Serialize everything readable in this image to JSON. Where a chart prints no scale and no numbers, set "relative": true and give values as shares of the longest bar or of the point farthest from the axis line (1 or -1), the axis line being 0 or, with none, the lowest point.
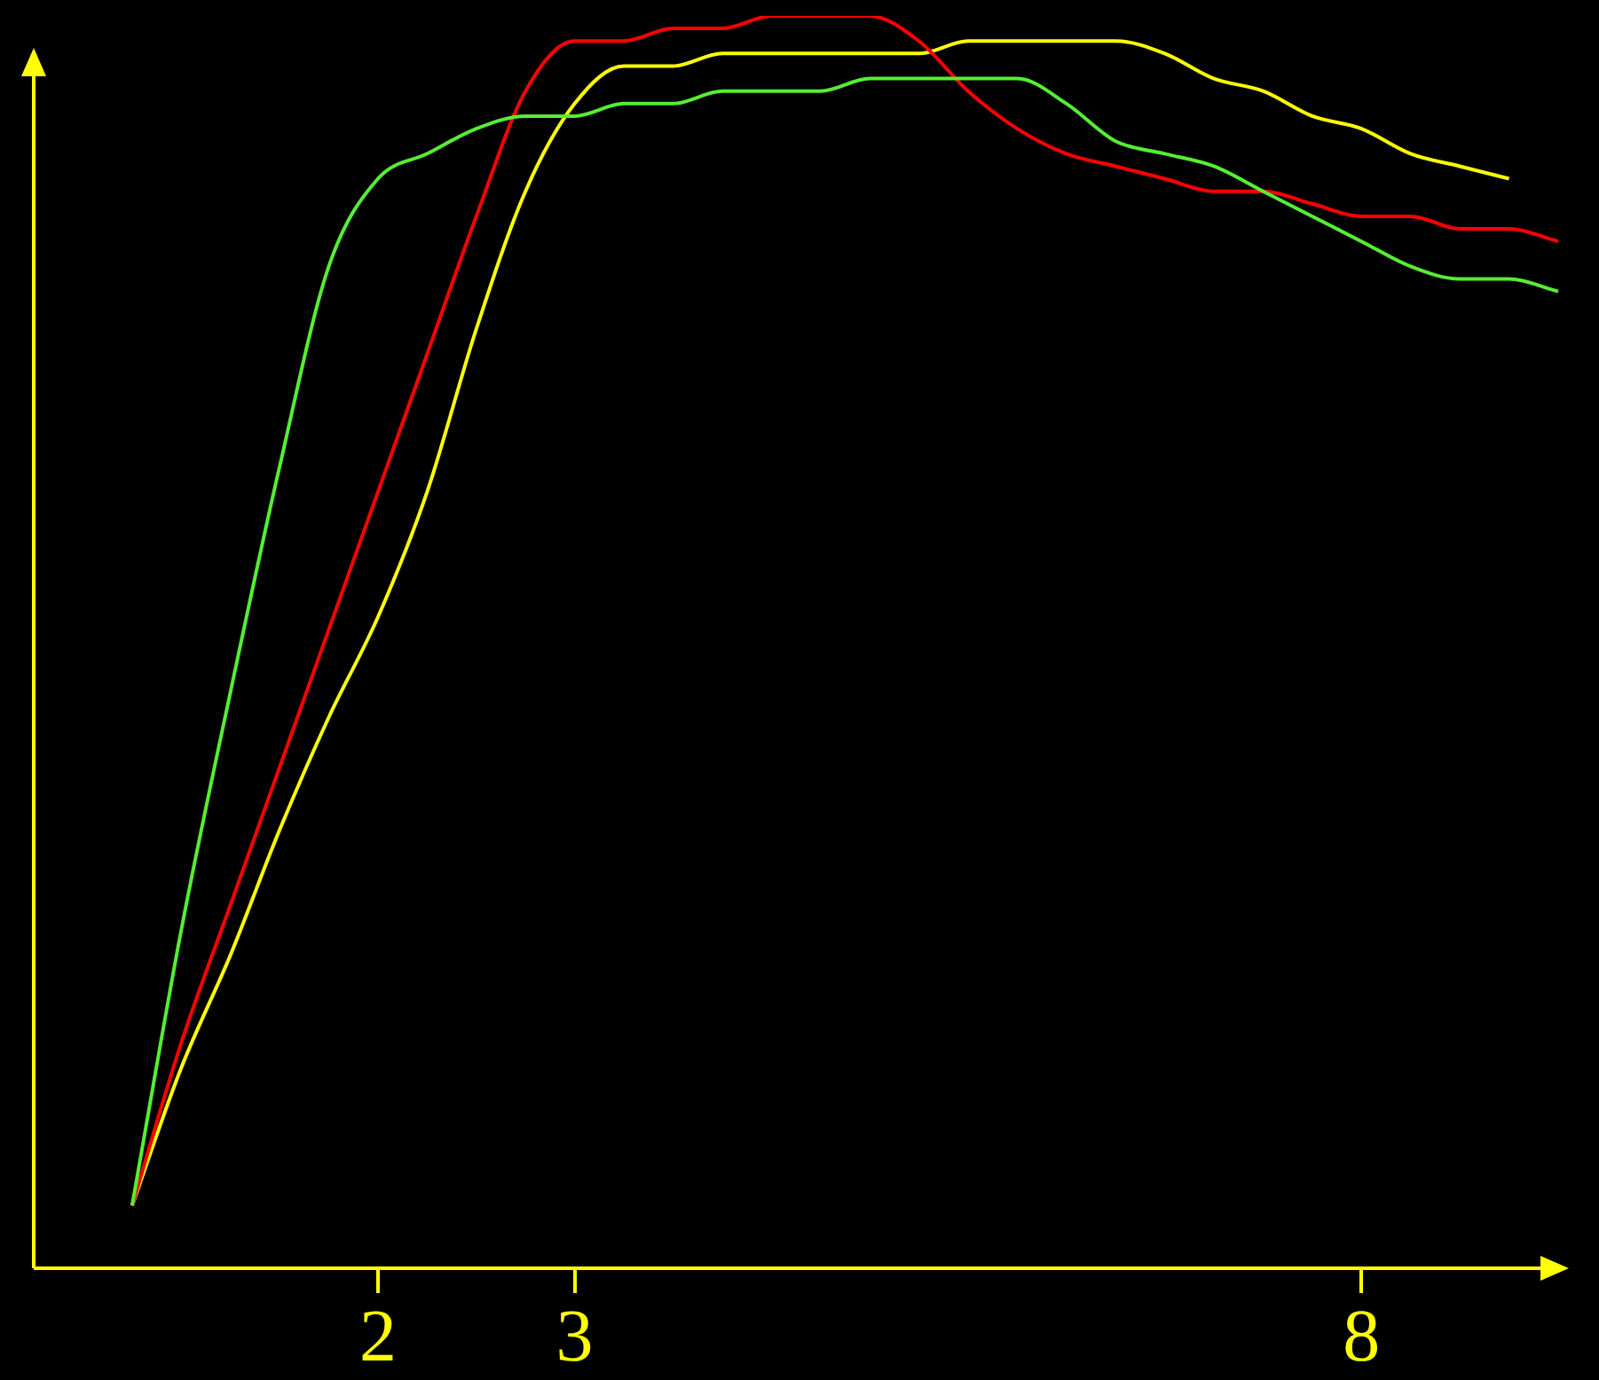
{
  "chart_data": {
    "type": "line",
    "relative": true,
    "legend": false,
    "marker": "none",
    "categories": [
      null,
      null,
      null,
      null,
      null,
      null,
      null,
      "2",
      null,
      null,
      null,
      "3",
      null,
      null,
      null,
      null,
      null,
      null,
      null,
      null,
      null,
      null,
      null,
      null,
      null,
      null,
      null,
      "8",
      null,
      null,
      null,
      null
    ],
    "series": [
      {
        "color": "#55ee33",
        "values": [
          null,
          null,
          0.05,
          0.27,
          0.46,
          0.64,
          0.8,
          0.87,
          0.89,
          0.91,
          0.92,
          0.92,
          0.93,
          0.93,
          0.94,
          0.94,
          0.94,
          0.95,
          0.95,
          0.95,
          0.95,
          0.93,
          0.9,
          0.89,
          0.88,
          0.86,
          0.84,
          0.82,
          0.8,
          0.79,
          0.79,
          0.78
        ]
      },
      {
        "color": "#ff0000",
        "values": [
          null,
          null,
          0.05,
          0.18,
          0.29,
          0.4,
          0.51,
          0.62,
          0.73,
          0.84,
          0.94,
          0.98,
          0.98,
          0.99,
          0.99,
          1.0,
          1.0,
          1.0,
          0.98,
          0.94,
          0.91,
          0.89,
          0.88,
          0.87,
          0.86,
          0.86,
          0.85,
          0.84,
          0.84,
          0.83,
          0.83,
          0.82
        ]
      },
      {
        "color": "#ffff00",
        "values": [
          null,
          null,
          0.05,
          0.16,
          0.25,
          0.35,
          0.44,
          0.52,
          0.62,
          0.75,
          0.86,
          0.93,
          0.96,
          0.96,
          0.97,
          0.97,
          0.97,
          0.97,
          0.97,
          0.98,
          0.98,
          0.98,
          0.98,
          0.97,
          0.95,
          0.94,
          0.92,
          0.91,
          0.89,
          0.88,
          0.87,
          null
        ]
      }
    ]
  }
}
